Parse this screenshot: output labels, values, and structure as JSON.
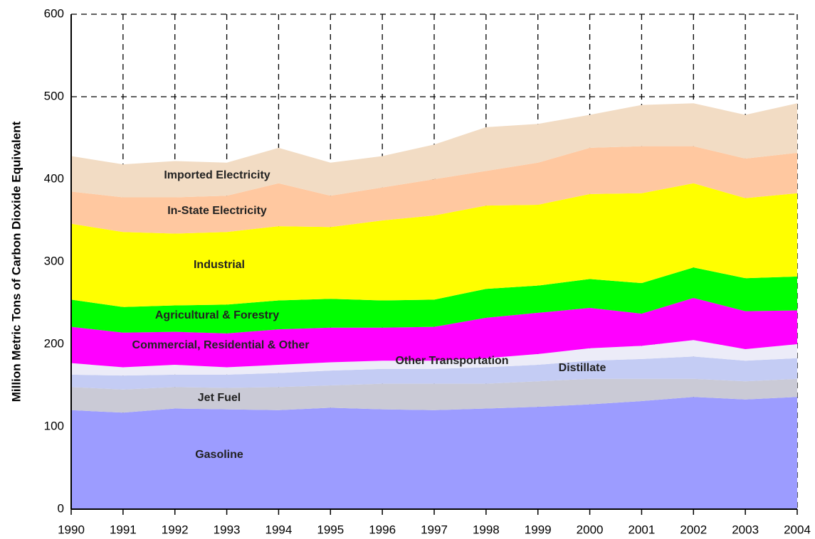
{
  "chart_data": {
    "type": "stacked_area",
    "y_label": "Million Metric Tons of Carbon Dioxide Equivalent",
    "x": [
      1990,
      1991,
      1992,
      1993,
      1994,
      1995,
      1996,
      1997,
      1998,
      1999,
      2000,
      2001,
      2002,
      2003,
      2004
    ],
    "xlim": [
      1990,
      2004
    ],
    "xticks": [
      1990,
      1991,
      1992,
      1993,
      1994,
      1995,
      1996,
      1997,
      1998,
      1999,
      2000,
      2001,
      2002,
      2003,
      2004
    ],
    "ylim": [
      0,
      600
    ],
    "yticks": [
      0,
      100,
      200,
      300,
      400,
      500,
      600
    ],
    "grid": true,
    "series": [
      {
        "name": "Gasoline",
        "color": "#9c9cff",
        "values": [
          120,
          117,
          122,
          121,
          120,
          123,
          121,
          120,
          122,
          124,
          127,
          131,
          136,
          133,
          136
        ]
      },
      {
        "name": "Jet Fuel",
        "color": "#cacad6",
        "values": [
          28,
          28,
          26,
          26,
          28,
          27,
          31,
          32,
          30,
          31,
          31,
          27,
          22,
          22,
          22
        ]
      },
      {
        "name": "Distillate",
        "color": "#c4ccf4",
        "values": [
          15,
          17,
          15,
          16,
          17,
          18,
          18,
          18,
          20,
          20,
          22,
          24,
          27,
          25,
          25
        ]
      },
      {
        "name": "Other Transportation",
        "color": "#ececf8",
        "values": [
          14,
          10,
          12,
          9,
          10,
          10,
          10,
          10,
          11,
          13,
          15,
          16,
          20,
          14,
          17
        ]
      },
      {
        "name": "Commercial, Residential & Other",
        "color": "#ff00ff",
        "values": [
          44,
          42,
          40,
          41,
          43,
          42,
          40,
          41,
          49,
          50,
          49,
          39,
          51,
          46,
          41
        ]
      },
      {
        "name": "Agricultural & Forestry",
        "color": "#00ff00",
        "values": [
          33,
          31,
          32,
          35,
          35,
          35,
          33,
          33,
          35,
          33,
          35,
          37,
          37,
          40,
          41
        ]
      },
      {
        "name": "Industrial",
        "color": "#ffff00",
        "values": [
          92,
          91,
          87,
          88,
          90,
          87,
          97,
          102,
          101,
          98,
          103,
          109,
          102,
          97,
          101
        ]
      },
      {
        "name": "In-State Electricity",
        "color": "#ffc8a0",
        "values": [
          39,
          42,
          44,
          44,
          52,
          38,
          40,
          44,
          42,
          51,
          56,
          57,
          45,
          48,
          49
        ]
      },
      {
        "name": "Imported Electricity",
        "color": "#f2dcc4",
        "values": [
          43,
          40,
          44,
          40,
          43,
          40,
          38,
          42,
          53,
          47,
          40,
          50,
          52,
          53,
          60
        ]
      }
    ]
  }
}
